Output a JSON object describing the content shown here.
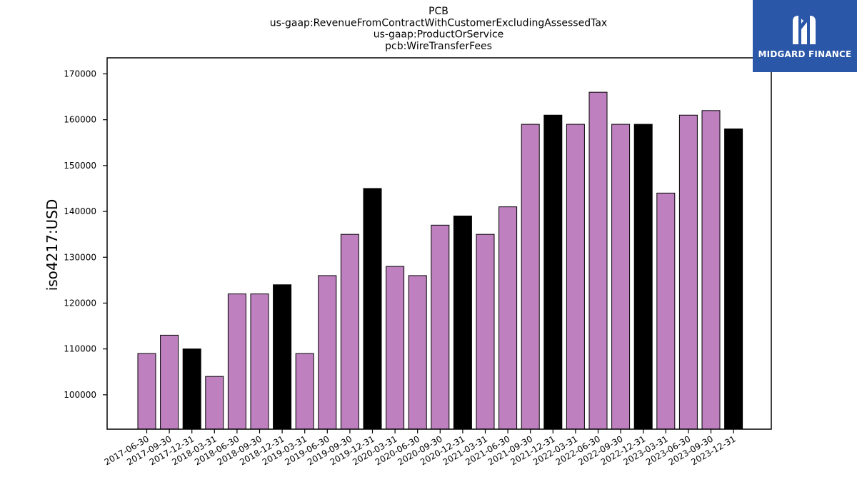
{
  "brand": {
    "name": "MIDGARD FINANCE",
    "logo_icon": "midgard-m-logo-icon",
    "background": "#2b57a8"
  },
  "chart_data": {
    "type": "bar",
    "title_lines": [
      "PCB",
      "us-gaap:RevenueFromContractWithCustomerExcludingAssessedTax",
      "us-gaap:ProductOrService",
      "pcb:WireTransferFees"
    ],
    "xlabel": "",
    "ylabel": "iso4217:USD",
    "categories": [
      "2017-06-30",
      "2017-09-30",
      "2017-12-31",
      "2018-03-31",
      "2018-06-30",
      "2018-09-30",
      "2018-12-31",
      "2019-03-31",
      "2019-06-30",
      "2019-09-30",
      "2019-12-31",
      "2020-03-31",
      "2020-06-30",
      "2020-09-30",
      "2020-12-31",
      "2021-03-31",
      "2021-06-30",
      "2021-09-30",
      "2021-12-31",
      "2022-03-31",
      "2022-06-30",
      "2022-09-30",
      "2022-12-31",
      "2023-03-31",
      "2023-06-30",
      "2023-09-30",
      "2023-12-31"
    ],
    "values": [
      109000,
      113000,
      110000,
      104000,
      122000,
      122000,
      124000,
      109000,
      126000,
      135000,
      145000,
      128000,
      126000,
      137000,
      139000,
      135000,
      141000,
      159000,
      161000,
      159000,
      166000,
      159000,
      159000,
      144000,
      161000,
      162000,
      158000
    ],
    "bar_colors": [
      "#bf80bf",
      "#bf80bf",
      "#000000",
      "#bf80bf",
      "#bf80bf",
      "#bf80bf",
      "#000000",
      "#bf80bf",
      "#bf80bf",
      "#bf80bf",
      "#000000",
      "#bf80bf",
      "#bf80bf",
      "#bf80bf",
      "#000000",
      "#bf80bf",
      "#bf80bf",
      "#bf80bf",
      "#000000",
      "#bf80bf",
      "#bf80bf",
      "#bf80bf",
      "#000000",
      "#bf80bf",
      "#bf80bf",
      "#bf80bf",
      "#000000"
    ],
    "ylim": [
      92500,
      173500
    ],
    "yticks": [
      100000,
      110000,
      120000,
      130000,
      140000,
      150000,
      160000,
      170000
    ],
    "ytick_labels": [
      "100000",
      "110000",
      "120000",
      "130000",
      "140000",
      "150000",
      "160000",
      "170000"
    ],
    "grid": false,
    "legend": "none"
  }
}
